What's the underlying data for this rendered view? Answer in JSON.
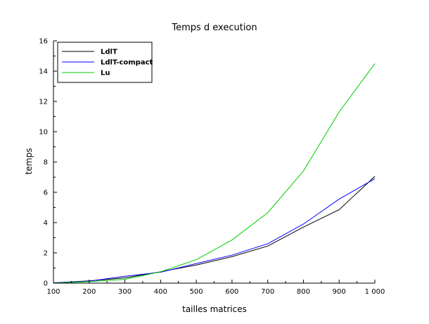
{
  "chart_data": {
    "type": "line",
    "title": "Temps d execution",
    "xlabel": "tailles matrices",
    "ylabel": "temps",
    "xlim": [
      100,
      1000
    ],
    "ylim": [
      0,
      16
    ],
    "x": [
      100,
      200,
      300,
      400,
      500,
      600,
      700,
      800,
      900,
      1000
    ],
    "xtick_labels": [
      "100",
      "200",
      "300",
      "400",
      "500",
      "600",
      "700",
      "800",
      "900",
      "1 000"
    ],
    "ytick_labels": [
      "0",
      "2",
      "4",
      "6",
      "8",
      "10",
      "12",
      "14",
      "16"
    ],
    "grid": false,
    "legend_position": "top-left",
    "series": [
      {
        "name": "LdlT",
        "color": "#000000",
        "values": [
          0.02,
          0.15,
          0.35,
          0.75,
          1.2,
          1.75,
          2.45,
          3.7,
          4.85,
          7.05
        ]
      },
      {
        "name": "LdlT-compact",
        "color": "#0000ff",
        "values": [
          0.02,
          0.13,
          0.45,
          0.72,
          1.3,
          1.85,
          2.6,
          3.9,
          5.55,
          6.9
        ]
      },
      {
        "name": "Lu",
        "color": "#00cc00",
        "values": [
          0.0,
          0.1,
          0.25,
          0.75,
          1.55,
          2.85,
          4.65,
          7.4,
          11.3,
          14.5
        ]
      }
    ]
  }
}
